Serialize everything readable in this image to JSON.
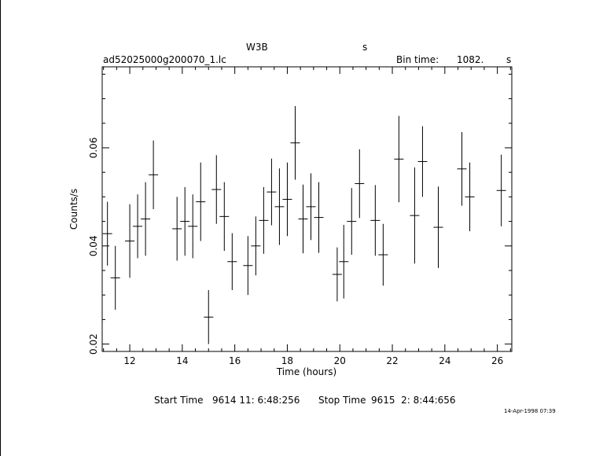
{
  "header": {
    "object": "W3B",
    "band": "s",
    "filename": "ad52025000g200070_1.lc",
    "bin_label": "Bin time:",
    "bin_value": "1082.",
    "bin_unit": "s"
  },
  "footer": {
    "start_label": "Start Time",
    "start_value": "9614 11: 6:48:256",
    "stop_label": "Stop Time",
    "stop_value": "9615  2: 8:44:656",
    "stamp": "14-Apr-1998 07:39"
  },
  "chart_data": {
    "type": "scatter",
    "title": "",
    "xlabel": "Time (hours)",
    "ylabel": "Counts/s",
    "xlim": [
      10.95,
      26.55
    ],
    "ylim": [
      0.0185,
      0.0765
    ],
    "xticks": [
      "12",
      "14",
      "16",
      "18",
      "20",
      "22",
      "24",
      "26"
    ],
    "yticks": [
      "0.02",
      "0.04",
      "0.06"
    ],
    "grid": false,
    "series": [
      {
        "points": [
          {
            "x": 11.15,
            "y": 0.0425,
            "yerr": 0.0065
          },
          {
            "x": 11.45,
            "y": 0.0335,
            "yerr": 0.0065
          },
          {
            "x": 12.0,
            "y": 0.041,
            "yerr": 0.0075
          },
          {
            "x": 12.3,
            "y": 0.044,
            "yerr": 0.0065
          },
          {
            "x": 12.6,
            "y": 0.0455,
            "yerr": 0.0075
          },
          {
            "x": 12.9,
            "y": 0.0545,
            "yerr": 0.007
          },
          {
            "x": 13.8,
            "y": 0.0435,
            "yerr": 0.0065
          },
          {
            "x": 14.1,
            "y": 0.045,
            "yerr": 0.007
          },
          {
            "x": 14.4,
            "y": 0.044,
            "yerr": 0.0065
          },
          {
            "x": 14.7,
            "y": 0.049,
            "yerr": 0.008
          },
          {
            "x": 15.0,
            "y": 0.0255,
            "yerr": 0.0055
          },
          {
            "x": 15.3,
            "y": 0.0515,
            "yerr": 0.007
          },
          {
            "x": 15.6,
            "y": 0.046,
            "yerr": 0.007
          },
          {
            "x": 15.9,
            "y": 0.0368,
            "yerr": 0.0058
          },
          {
            "x": 16.5,
            "y": 0.036,
            "yerr": 0.006
          },
          {
            "x": 16.8,
            "y": 0.04,
            "yerr": 0.006
          },
          {
            "x": 17.1,
            "y": 0.0452,
            "yerr": 0.0068
          },
          {
            "x": 17.4,
            "y": 0.051,
            "yerr": 0.0068
          },
          {
            "x": 17.7,
            "y": 0.048,
            "yerr": 0.0078
          },
          {
            "x": 18.0,
            "y": 0.0495,
            "yerr": 0.0075
          },
          {
            "x": 18.3,
            "y": 0.061,
            "yerr": 0.0075
          },
          {
            "x": 18.6,
            "y": 0.0455,
            "yerr": 0.007
          },
          {
            "x": 18.9,
            "y": 0.048,
            "yerr": 0.0068
          },
          {
            "x": 19.2,
            "y": 0.0458,
            "yerr": 0.0072
          },
          {
            "x": 19.9,
            "y": 0.0342,
            "yerr": 0.0055
          },
          {
            "x": 20.15,
            "y": 0.0368,
            "yerr": 0.0075
          },
          {
            "x": 20.45,
            "y": 0.045,
            "yerr": 0.0068
          },
          {
            "x": 20.75,
            "y": 0.0527,
            "yerr": 0.007
          },
          {
            "x": 21.35,
            "y": 0.0452,
            "yerr": 0.0072
          },
          {
            "x": 21.65,
            "y": 0.0382,
            "yerr": 0.0063
          },
          {
            "x": 22.25,
            "y": 0.0577,
            "yerr": 0.0088
          },
          {
            "x": 22.85,
            "y": 0.0462,
            "yerr": 0.0098
          },
          {
            "x": 23.15,
            "y": 0.0572,
            "yerr": 0.0072
          },
          {
            "x": 23.75,
            "y": 0.0438,
            "yerr": 0.0083
          },
          {
            "x": 24.65,
            "y": 0.0557,
            "yerr": 0.0075
          },
          {
            "x": 24.95,
            "y": 0.05,
            "yerr": 0.007
          },
          {
            "x": 26.15,
            "y": 0.0513,
            "yerr": 0.0073
          }
        ]
      }
    ]
  }
}
